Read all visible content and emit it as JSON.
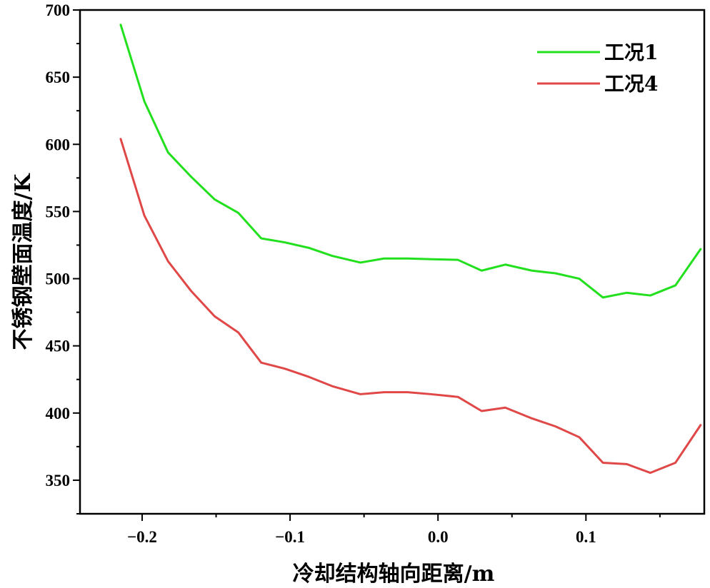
{
  "chart_data": {
    "type": "line",
    "xlabel": "冷却结构轴向距离/m",
    "ylabel": "不锈钢壁面温度/K",
    "xlim": [
      -0.242,
      0.18
    ],
    "ylim": [
      325,
      700
    ],
    "xticks": [
      {
        "value": -0.2,
        "label": "−0.2"
      },
      {
        "value": -0.1,
        "label": "−0.1"
      },
      {
        "value": 0.0,
        "label": "0.0"
      },
      {
        "value": 0.1,
        "label": "0.1"
      }
    ],
    "yticks": [
      {
        "value": 350,
        "label": "350"
      },
      {
        "value": 400,
        "label": "400"
      },
      {
        "value": 450,
        "label": "450"
      },
      {
        "value": 500,
        "label": "500"
      },
      {
        "value": 550,
        "label": "550"
      },
      {
        "value": 600,
        "label": "600"
      },
      {
        "value": 650,
        "label": "650"
      },
      {
        "value": 700,
        "label": "700"
      }
    ],
    "legend_position": "top-right",
    "series": [
      {
        "name": "工况1",
        "color": "#22e01e",
        "points": [
          [
            -0.2145,
            689
          ],
          [
            -0.1985,
            632
          ],
          [
            -0.1825,
            594
          ],
          [
            -0.167,
            576
          ],
          [
            -0.151,
            559
          ],
          [
            -0.135,
            549
          ],
          [
            -0.1195,
            530
          ],
          [
            -0.1035,
            527
          ],
          [
            -0.0875,
            523
          ],
          [
            -0.0715,
            517
          ],
          [
            -0.0525,
            512
          ],
          [
            -0.0365,
            515
          ],
          [
            -0.0205,
            515
          ],
          [
            -0.0045,
            514.5
          ],
          [
            0.0135,
            514
          ],
          [
            0.0295,
            506
          ],
          [
            0.0455,
            510.5
          ],
          [
            0.0635,
            506
          ],
          [
            0.0795,
            504
          ],
          [
            0.0955,
            500
          ],
          [
            0.1115,
            486
          ],
          [
            0.1275,
            489.5
          ],
          [
            0.1435,
            487.5
          ],
          [
            0.1605,
            495
          ],
          [
            0.1775,
            522
          ]
        ]
      },
      {
        "name": "工况4",
        "color": "#e04848",
        "points": [
          [
            -0.2145,
            604
          ],
          [
            -0.1985,
            547
          ],
          [
            -0.1825,
            513
          ],
          [
            -0.167,
            491
          ],
          [
            -0.151,
            472
          ],
          [
            -0.135,
            460
          ],
          [
            -0.1195,
            437.5
          ],
          [
            -0.1035,
            433
          ],
          [
            -0.0875,
            427
          ],
          [
            -0.0715,
            420
          ],
          [
            -0.0525,
            414
          ],
          [
            -0.0365,
            415.5
          ],
          [
            -0.0205,
            415.5
          ],
          [
            -0.0045,
            414
          ],
          [
            0.0135,
            412
          ],
          [
            0.0295,
            401.5
          ],
          [
            0.0455,
            404
          ],
          [
            0.0635,
            396
          ],
          [
            0.0795,
            390
          ],
          [
            0.0955,
            382
          ],
          [
            0.1115,
            363
          ],
          [
            0.1275,
            362
          ],
          [
            0.1435,
            355.5
          ],
          [
            0.1605,
            363
          ],
          [
            0.1775,
            391
          ]
        ]
      }
    ]
  }
}
